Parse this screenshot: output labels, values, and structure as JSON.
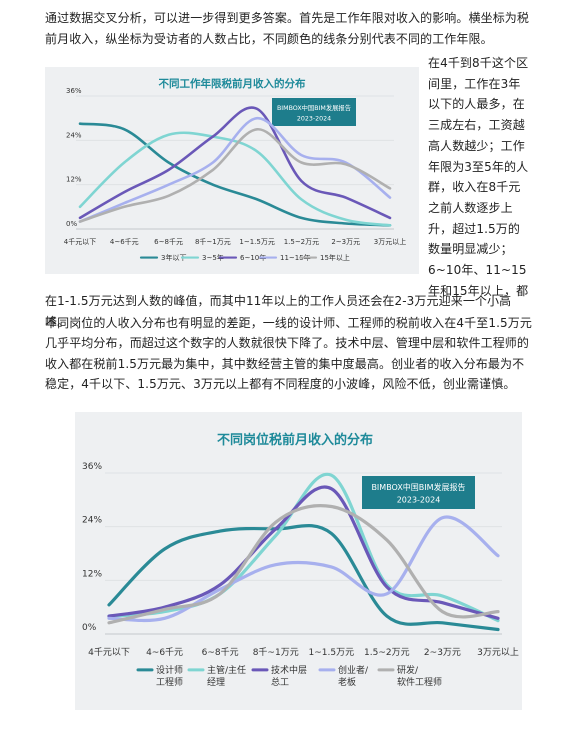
{
  "paragraphs": {
    "p1": "通过数据交叉分析，可以进一步得到更多答案。首先是工作年限对收入的影响。横坐标为税前月收入，纵坐标为受访者的人数占比，不同颜色的线条分别代表不同的工作年限。",
    "p2": "在4千到8千这个区间里，工作在3年以下的人最多，在三成左右，工资越高人数越少；工作年限为3至5年的人群，收入在8千元之前人数逐步上升，超过1.5万的数量明显减少；6~10年、11~15年和15年以上，都",
    "p3": "在1-1.5万元达到人数的峰值，而其中11年以上的工作人员还会在2-3万元迎来一个小高峰。",
    "p4": "不同岗位的人收入分布也有明显的差距，一线的设计师、工程师的税前收入在4千至1.5万元几乎平均分布，而超过这个数字的人数就很快下降了。技术中层、管理中层和软件工程师的收入都在税前1.5万元最为集中，其中数经营主管的集中度最高。创业者的收入分布最为不稳定，4千以下、1.5万元、3万元以上都有不同程度的小波峰，风险不低，创业需谨慎。"
  },
  "chart_data": [
    {
      "type": "line",
      "title": "不同工作年限税前月收入的分布",
      "badge": [
        "BIMBOX中国BIM发展报告",
        "2023-2024"
      ],
      "categories": [
        "4千元以下",
        "4~6千元",
        "6~8千元",
        "8千~1万元",
        "1~1.5万元",
        "1.5~2万元",
        "2~3万元",
        "3万元以上"
      ],
      "yticks": [
        "36%",
        "24%",
        "12%",
        "0%"
      ],
      "ylim": [
        0,
        36
      ],
      "grid": true,
      "legend_position": "bottom",
      "series": [
        {
          "name": "3年以下",
          "color": "#2a8a96",
          "values": [
            28.5,
            27,
            18,
            12,
            8,
            3,
            1.5,
            1
          ]
        },
        {
          "name": "3~5年",
          "color": "#7fd5d2",
          "values": [
            6,
            18,
            25.5,
            25,
            21,
            8,
            2.5,
            1
          ]
        },
        {
          "name": "6~10年",
          "color": "#6a58b8",
          "values": [
            3,
            10,
            16,
            25,
            32.5,
            13,
            8.5,
            3
          ]
        },
        {
          "name": "11~15年",
          "color": "#a7b0ee",
          "values": [
            2,
            7,
            12,
            18,
            30,
            20,
            18,
            8.5
          ]
        },
        {
          "name": "15年以上",
          "color": "#b0b0b0",
          "values": [
            2,
            6,
            9,
            16,
            27,
            18,
            17.5,
            11
          ]
        }
      ]
    },
    {
      "type": "line",
      "title": "不同岗位税前月收入的分布",
      "badge": [
        "BIMBOX中国BIM发展报告",
        "2023-2024"
      ],
      "categories": [
        "4千元以下",
        "4~6千元",
        "6~8千元",
        "8千~1万元",
        "1~1.5万元",
        "1.5~2万元",
        "2~3万元",
        "3万元以上"
      ],
      "yticks": [
        "36%",
        "24%",
        "12%",
        "0%"
      ],
      "ylim": [
        0,
        36
      ],
      "grid": true,
      "legend_position": "bottom",
      "series": [
        {
          "name": "设计师/工程师",
          "lines": [
            "设计师",
            "工程师"
          ],
          "color": "#2a8a96",
          "values": [
            6.5,
            19,
            23,
            23.5,
            22.5,
            4,
            2.5,
            1
          ]
        },
        {
          "name": "主管/主任经理",
          "lines": [
            "主管/主任",
            "经理"
          ],
          "color": "#7fd5d2",
          "values": [
            4,
            5,
            9,
            22,
            35.5,
            11,
            8.5,
            3
          ]
        },
        {
          "name": "技术中层总工",
          "lines": [
            "技术中层",
            "总工"
          ],
          "color": "#6a58b8",
          "values": [
            4,
            6,
            11,
            23.5,
            32.5,
            10.5,
            7,
            3.5
          ]
        },
        {
          "name": "创业者/老板",
          "lines": [
            "创业者/",
            "老板"
          ],
          "color": "#a7b0ee",
          "values": [
            3.5,
            3.5,
            10,
            15.5,
            15,
            9,
            26,
            17.5
          ]
        },
        {
          "name": "研发/软件工程师",
          "lines": [
            "研发/",
            "软件工程师"
          ],
          "color": "#b0b0b0",
          "values": [
            2.5,
            5.5,
            9,
            25,
            28.5,
            21,
            5,
            5
          ]
        }
      ]
    }
  ]
}
